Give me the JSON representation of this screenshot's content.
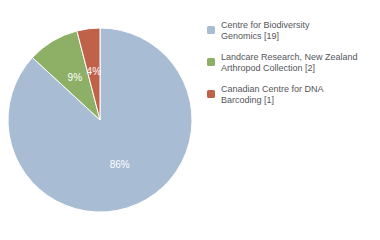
{
  "chart_data": {
    "type": "pie",
    "categories": [
      "Centre for Biodiversity\nGenomics [19]",
      "Landcare Research, New Zealand\nArthropod Collection [2]",
      "Canadian Centre for DNA\nBarcoding [1]"
    ],
    "values": [
      86,
      9,
      4
    ],
    "value_labels": [
      "86%",
      "9%",
      "4%"
    ],
    "colors": [
      "#a8bcd4",
      "#8db066",
      "#c0614a"
    ],
    "data_labels": true,
    "legend": "upper right"
  }
}
